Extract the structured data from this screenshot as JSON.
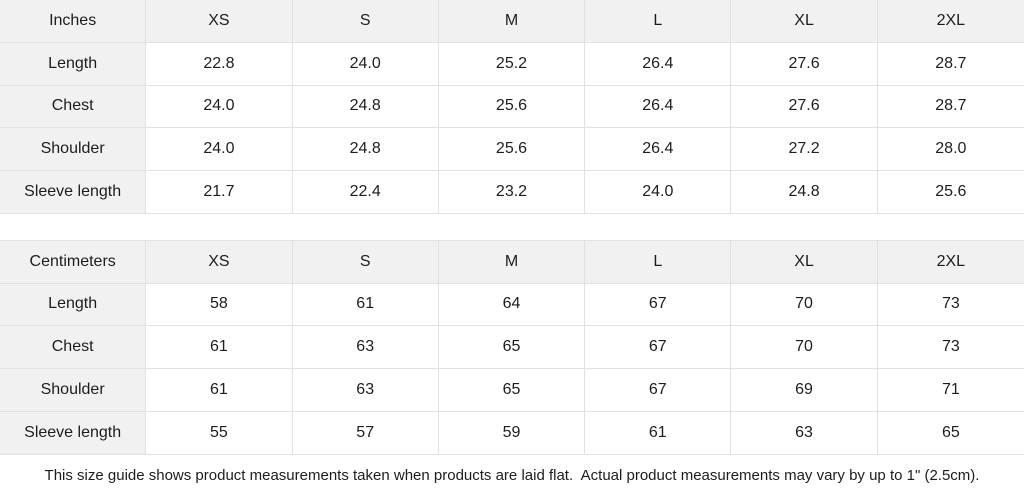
{
  "colors": {
    "header_bg": "#f1f1f2",
    "cell_bg": "#ffffff",
    "border": "#e1e1e2",
    "text": "#1d1d1f"
  },
  "tables": [
    {
      "unit_label": "Inches",
      "size_headers": [
        "XS",
        "S",
        "M",
        "L",
        "XL",
        "2XL"
      ],
      "rows": [
        {
          "label": "Length",
          "values": [
            "22.8",
            "24.0",
            "25.2",
            "26.4",
            "27.6",
            "28.7"
          ]
        },
        {
          "label": "Chest",
          "values": [
            "24.0",
            "24.8",
            "25.6",
            "26.4",
            "27.6",
            "28.7"
          ]
        },
        {
          "label": "Shoulder",
          "values": [
            "24.0",
            "24.8",
            "25.6",
            "26.4",
            "27.2",
            "28.0"
          ]
        },
        {
          "label": "Sleeve length",
          "values": [
            "21.7",
            "22.4",
            "23.2",
            "24.0",
            "24.8",
            "25.6"
          ]
        }
      ]
    },
    {
      "unit_label": "Centimeters",
      "size_headers": [
        "XS",
        "S",
        "M",
        "L",
        "XL",
        "2XL"
      ],
      "rows": [
        {
          "label": "Length",
          "values": [
            "58",
            "61",
            "64",
            "67",
            "70",
            "73"
          ]
        },
        {
          "label": "Chest",
          "values": [
            "61",
            "63",
            "65",
            "67",
            "70",
            "73"
          ]
        },
        {
          "label": "Shoulder",
          "values": [
            "61",
            "63",
            "65",
            "67",
            "69",
            "71"
          ]
        },
        {
          "label": "Sleeve length",
          "values": [
            "55",
            "57",
            "59",
            "61",
            "63",
            "65"
          ]
        }
      ]
    }
  ],
  "footer": {
    "note": "This size guide shows product measurements taken when products are laid flat.  Actual product measurements may vary by up to 1\" (2.5cm)."
  }
}
